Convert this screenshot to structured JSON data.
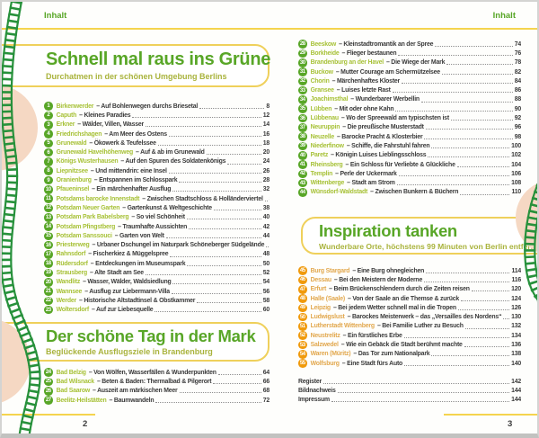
{
  "page": {
    "left": {
      "header": "Inhalt",
      "page_number": "2"
    },
    "right": {
      "header": "Inhalt",
      "page_number": "3"
    }
  },
  "sections": {
    "green_escape": {
      "title": "Schnell mal raus ins Grüne",
      "subtitle": "Durchatmen in der schönen Umgebung Berlins"
    },
    "mark_day": {
      "title": "Der schöne Tag in der Mark",
      "subtitle": "Beglückende Ausflugsziele in Brandenburg"
    },
    "inspiration": {
      "title": "Inspiration tanken",
      "subtitle": "Wunderbare Orte, höchstens 99 Minuten von Berlin entfernt"
    }
  },
  "colors": {
    "green": "#58a627",
    "light_green": "#a8c239",
    "orange": "#f09a0c",
    "light_orange": "#e2a84e",
    "yellow": "#f5d44e",
    "peach": "#f5d8c3",
    "track_green": "#27913b",
    "text": "#3b3b3b"
  },
  "lists": {
    "s1": [
      {
        "n": "1",
        "name": "Birkenwerder",
        "desc": "– Auf Bohlenwegen durchs Briesetal",
        "page": "8"
      },
      {
        "n": "2",
        "name": "Caputh",
        "desc": "– Kleines Paradies",
        "page": "12"
      },
      {
        "n": "3",
        "name": "Erkner",
        "desc": "– Wälder, Villen, Wasser",
        "page": "14"
      },
      {
        "n": "4",
        "name": "Friedrichshagen",
        "desc": "– Am Meer des Ostens",
        "page": "16"
      },
      {
        "n": "5",
        "name": "Grunewald",
        "desc": "– Ökowerk & Teufelssee",
        "page": "18"
      },
      {
        "n": "6",
        "name": "Grunewald Havelhöhenweg",
        "desc": "– Auf & ab im Grunewald",
        "page": "20"
      },
      {
        "n": "7",
        "name": "Königs Wusterhausen",
        "desc": "– Auf den Spuren des Soldatenkönigs",
        "page": "24"
      },
      {
        "n": "8",
        "name": "Liepnitzsee",
        "desc": "– Und mittendrin: eine Insel",
        "page": "26"
      },
      {
        "n": "9",
        "name": "Oranienburg",
        "desc": "– Entspannen im Schlosspark",
        "page": "28"
      },
      {
        "n": "10",
        "name": "Pfaueninsel",
        "desc": "– Ein märchenhafter Ausflug",
        "page": "32"
      },
      {
        "n": "11",
        "name": "Potsdams barocke Innenstadt",
        "desc": "– Zwischen Stadtschloss & Holländerviertel",
        "page": "34"
      },
      {
        "n": "12",
        "name": "Potsdam Neuer Garten",
        "desc": "– Gartenkunst & Weltgeschichte",
        "page": "38"
      },
      {
        "n": "13",
        "name": "Potsdam Park Babelsberg",
        "desc": "– So viel Schönheit",
        "page": "40"
      },
      {
        "n": "14",
        "name": "Potsdam Pfingstberg",
        "desc": "– Traumhafte Aussichten",
        "page": "42"
      },
      {
        "n": "15",
        "name": "Potsdam Sanssouci",
        "desc": "– Garten von Welt",
        "page": "44"
      },
      {
        "n": "16",
        "name": "Priesterweg",
        "desc": "– Urbaner Dschungel im Naturpark Schöneberger Südgelände",
        "page": "46"
      },
      {
        "n": "17",
        "name": "Rahnsdorf",
        "desc": "– Fischerkiez & Müggelspree",
        "page": "48"
      },
      {
        "n": "18",
        "name": "Rüdersdorf",
        "desc": "– Entdeckungen im Museumspark",
        "page": "50"
      },
      {
        "n": "19",
        "name": "Strausberg",
        "desc": "– Alte Stadt am See",
        "page": "52"
      },
      {
        "n": "20",
        "name": "Wandlitz",
        "desc": "– Wasser, Wälder, Waldsiedlung",
        "page": "54"
      },
      {
        "n": "21",
        "name": "Wannsee",
        "desc": "– Ausflug zur Liebermann-Villa",
        "page": "56"
      },
      {
        "n": "22",
        "name": "Werder",
        "desc": "– Historische Altstadtinsel & Obstkammer",
        "page": "58"
      },
      {
        "n": "23",
        "name": "Woltersdorf",
        "desc": "– Auf zur Liebesquelle",
        "page": "60"
      }
    ],
    "s2_left": [
      {
        "n": "24",
        "name": "Bad Belzig",
        "desc": "– Von Wölfen, Wasserfällen & Wunderpunkten",
        "page": "64"
      },
      {
        "n": "25",
        "name": "Bad Wilsnack",
        "desc": "– Beten & Baden: Thermalbad & Pilgerort",
        "page": "66"
      },
      {
        "n": "26",
        "name": "Bad Saarow",
        "desc": "– Auszeit am märkischen Meer",
        "page": "68"
      },
      {
        "n": "27",
        "name": "Beelitz-Heilstätten",
        "desc": "– Baumwandeln",
        "page": "72"
      }
    ],
    "s2_right": [
      {
        "n": "28",
        "name": "Beeskow",
        "desc": "– Kleinstadtromantik an der Spree",
        "page": "74"
      },
      {
        "n": "29",
        "name": "Borkheide",
        "desc": "– Flieger bestaunen",
        "page": "76"
      },
      {
        "n": "30",
        "name": "Brandenburg an der Havel",
        "desc": "– Die Wiege der Mark",
        "page": "78"
      },
      {
        "n": "31",
        "name": "Buckow",
        "desc": "– Mutter Courage am Schermützelsee",
        "page": "82"
      },
      {
        "n": "32",
        "name": "Chorin",
        "desc": "– Märchenhaftes Kloster",
        "page": "84"
      },
      {
        "n": "33",
        "name": "Gransee",
        "desc": "– Luises letzte Rast",
        "page": "86"
      },
      {
        "n": "34",
        "name": "Joachimsthal",
        "desc": "– Wunderbarer Werbellin",
        "page": "88"
      },
      {
        "n": "35",
        "name": "Lübben",
        "desc": "– Mit oder ohne Kahn",
        "page": "90"
      },
      {
        "n": "36",
        "name": "Lübbenau",
        "desc": "– Wo der Spreewald am typischsten ist",
        "page": "92"
      },
      {
        "n": "37",
        "name": "Neuruppin",
        "desc": "– Die preußische Musterstadt",
        "page": "96"
      },
      {
        "n": "38",
        "name": "Neuzelle",
        "desc": "– Barocke Pracht & Klosterbier",
        "page": "98"
      },
      {
        "n": "39",
        "name": "Niederfinow",
        "desc": "– Schiffe, die Fahrstuhl fahren",
        "page": "100"
      },
      {
        "n": "40",
        "name": "Paretz",
        "desc": "– Königin Luises Lieblingsschloss",
        "page": "102"
      },
      {
        "n": "41",
        "name": "Rheinsberg",
        "desc": "– Ein Schloss für Verliebte & Glückliche",
        "page": "104"
      },
      {
        "n": "42",
        "name": "Templin",
        "desc": "– Perle der Uckermark",
        "page": "106"
      },
      {
        "n": "43",
        "name": "Wittenberge",
        "desc": "– Stadt am Strom",
        "page": "108"
      },
      {
        "n": "44",
        "name": "Wünsdorf-Waldstadt",
        "desc": "– Zwischen Bunkern & Büchern",
        "page": "110"
      }
    ],
    "s3": [
      {
        "n": "45",
        "name": "Burg Stargard",
        "desc": "– Eine Burg ohnegleichen",
        "page": "114"
      },
      {
        "n": "46",
        "name": "Dessau",
        "desc": "– Bei den Meistern der Moderne",
        "page": "116"
      },
      {
        "n": "47",
        "name": "Erfurt",
        "desc": "– Beim Brückenschlendern durch die Zeiten reisen",
        "page": "120"
      },
      {
        "n": "48",
        "name": "Halle (Saale)",
        "desc": "– Von der Saale an die Themse & zurück",
        "page": "124"
      },
      {
        "n": "49",
        "name": "Leipzig",
        "desc": "– Bei jedem Wetter schnell mal in die Tropen",
        "page": "126"
      },
      {
        "n": "50",
        "name": "Ludwigslust",
        "desc": "– Barockes Meisterwerk – das „Versailles des Nordens“",
        "page": "130"
      },
      {
        "n": "51",
        "name": "Lutherstadt Wittenberg",
        "desc": "– Bei Familie Luther zu Besuch",
        "page": "132"
      },
      {
        "n": "52",
        "name": "Neustrelitz",
        "desc": "– Ein fürstliches Erbe",
        "page": "134"
      },
      {
        "n": "53",
        "name": "Salzwedel",
        "desc": "– Wie ein Gebäck die Stadt berühmt machte",
        "page": "136"
      },
      {
        "n": "54",
        "name": "Waren (Müritz)",
        "desc": "– Das Tor zum Nationalpark",
        "page": "138"
      },
      {
        "n": "55",
        "name": "Wolfsburg",
        "desc": "– Eine Stadt fürs Auto",
        "page": "140"
      }
    ],
    "extras": [
      {
        "desc": "Register",
        "page": "142"
      },
      {
        "desc": "Bildnachweis",
        "page": "144"
      },
      {
        "desc": "Impressum",
        "page": "144"
      }
    ]
  }
}
